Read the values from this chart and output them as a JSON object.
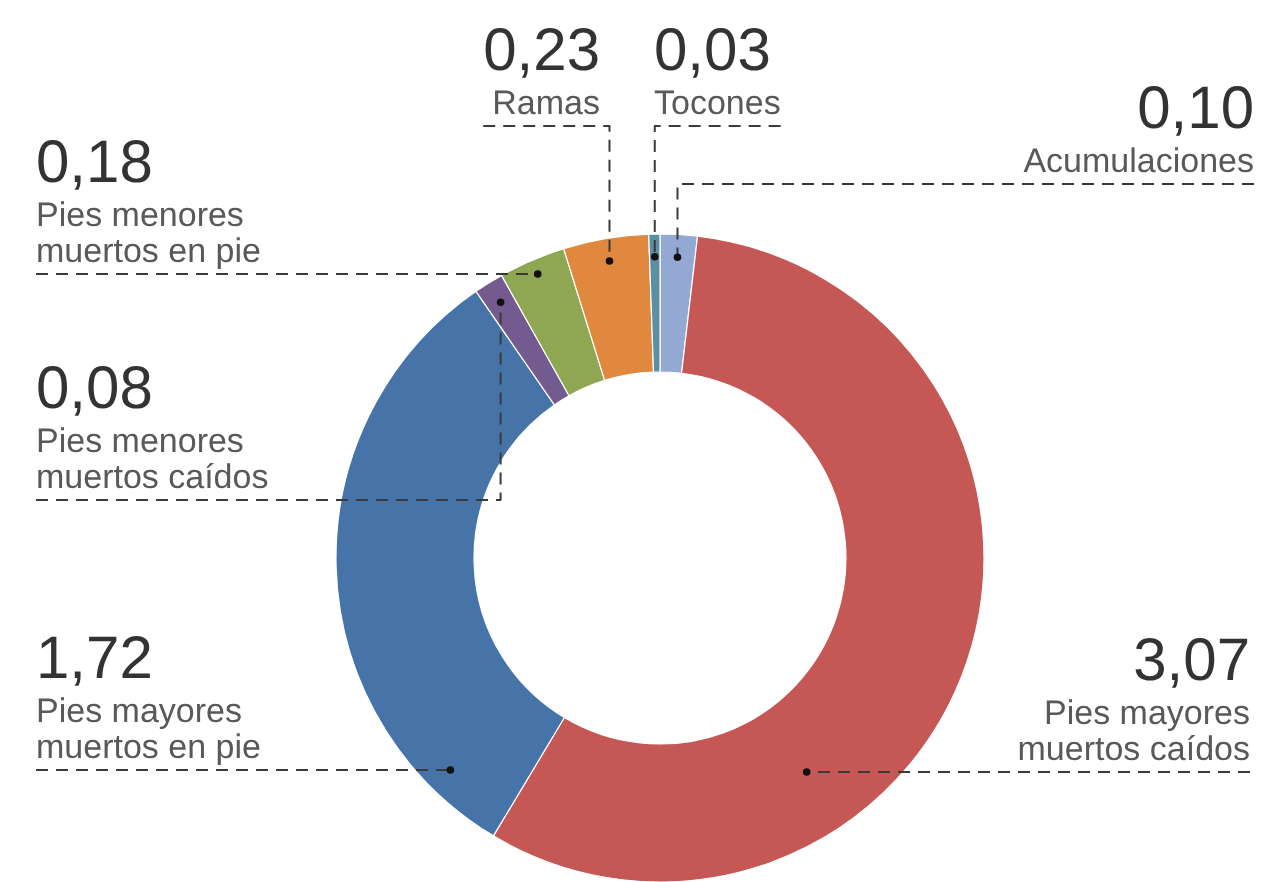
{
  "chart_data": {
    "type": "donut",
    "categories": [
      "Acumulaciones",
      "Pies mayores muertos caídos",
      "Pies mayores muertos en pie",
      "Pies menores muertos caídos",
      "Pies menores muertos en pie",
      "Ramas",
      "Tocones"
    ],
    "values": [
      0.1,
      3.07,
      1.72,
      0.08,
      0.18,
      0.23,
      0.03
    ],
    "colors": [
      "#93a9d3",
      "#c55754",
      "#4774a8",
      "#735a8f",
      "#8fa652",
      "#e0893e",
      "#5b8fa6"
    ],
    "value_labels": [
      "0,10",
      "3,07",
      "1,72",
      "0,08",
      "0,18",
      "0,23",
      "0,03"
    ]
  }
}
